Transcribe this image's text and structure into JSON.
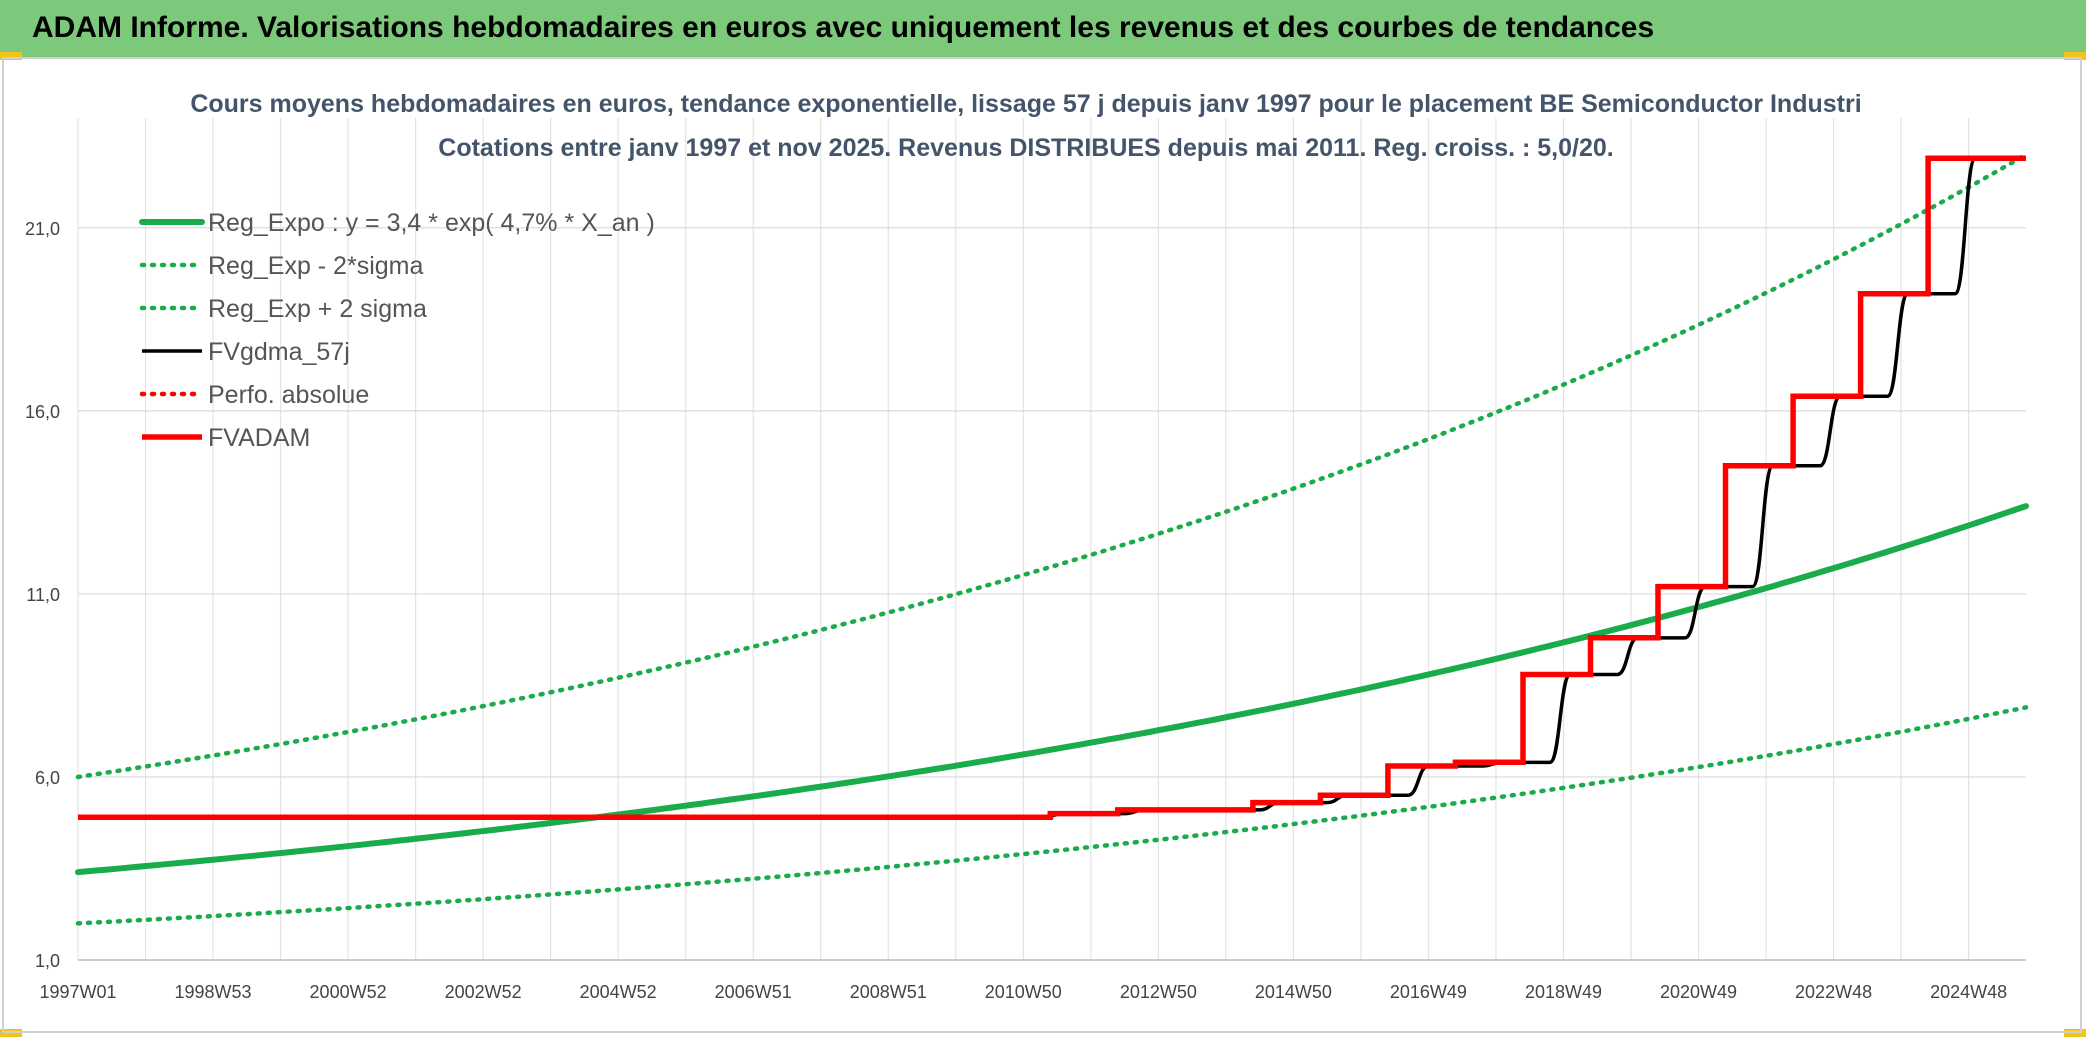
{
  "banner": {
    "title": "ADAM Informe. Valorisations hebdomadaires en euros avec uniquement les revenus et des courbes de tendances"
  },
  "chart_data": {
    "type": "line",
    "title": "Cours moyens hebdomadaires en euros, tendance exponentielle, lissage 57 j depuis janv 1997 pour le placement BE Semiconductor Industri",
    "subtitle": "Cotations entre janv 1997 et nov 2025. Revenus DISTRIBUES depuis mai 2011. Reg. croiss. : 5,0/20.",
    "xlabel": "",
    "ylabel": "",
    "x_tick_labels": [
      "1997W01",
      "1998W53",
      "2000W52",
      "2002W52",
      "2004W52",
      "2006W51",
      "2008W51",
      "2010W50",
      "2012W50",
      "2014W50",
      "2016W49",
      "2018W49",
      "2020W49",
      "2022W48",
      "2024W48"
    ],
    "x_tick_years": [
      1997,
      1999,
      2001,
      2003,
      2005,
      2007,
      2009,
      2011,
      2013,
      2015,
      2017,
      2019,
      2021,
      2023,
      2025
    ],
    "xlim": [
      1997,
      2025.85
    ],
    "y_tick_labels": [
      "1,0",
      "6,0",
      "11,0",
      "16,0",
      "21,0"
    ],
    "y_ticks": [
      1,
      6,
      11,
      16,
      21
    ],
    "ylim": [
      1,
      24
    ],
    "grid": true,
    "legend_position": "top-left",
    "series": [
      {
        "name": "Reg_Expo : y = 3,4 * exp( 4,7% *  X_an )",
        "color": "#1aab4a",
        "style": "solid",
        "x": [
          1997,
          2000,
          2003,
          2006,
          2009,
          2012,
          2015,
          2018,
          2021,
          2024,
          2025.85
        ],
        "y": [
          3.4,
          3.92,
          4.52,
          5.22,
          6.02,
          6.94,
          8.01,
          9.24,
          10.66,
          12.29,
          13.4
        ]
      },
      {
        "name": "Reg_Exp - 2*sigma",
        "color": "#1aab4a",
        "style": "dotted",
        "x": [
          1997,
          2000,
          2003,
          2006,
          2009,
          2012,
          2015,
          2018,
          2021,
          2024,
          2025.85
        ],
        "y": [
          2.0,
          2.31,
          2.66,
          3.07,
          3.54,
          4.08,
          4.71,
          5.43,
          6.27,
          7.23,
          7.9
        ]
      },
      {
        "name": "Reg_Exp + 2 sigma",
        "color": "#1aab4a",
        "style": "dotted",
        "x": [
          1997,
          2000,
          2003,
          2006,
          2009,
          2012,
          2015,
          2018,
          2021,
          2024,
          2025.85
        ],
        "y": [
          6.0,
          6.92,
          7.98,
          9.21,
          10.62,
          12.25,
          14.13,
          16.3,
          18.81,
          21.7,
          23.0
        ]
      },
      {
        "name": "FVgdma_57j",
        "color": "#000000",
        "style": "solid",
        "x": [
          1997,
          2011.3,
          2011.6,
          2012.5,
          2012.8,
          2014.5,
          2014.8,
          2015.5,
          2015.8,
          2016.7,
          2017.0,
          2017.8,
          2018.1,
          2018.8,
          2019.1,
          2019.8,
          2020.1,
          2020.8,
          2021.1,
          2021.8,
          2022.1,
          2022.8,
          2023.1,
          2023.8,
          2024.1,
          2024.8,
          2025.1,
          2025.85
        ],
        "y": [
          4.9,
          4.9,
          5.0,
          5.0,
          5.1,
          5.1,
          5.3,
          5.3,
          5.5,
          5.5,
          6.3,
          6.3,
          6.4,
          6.4,
          8.8,
          8.8,
          9.8,
          9.8,
          11.2,
          11.2,
          14.5,
          14.5,
          16.4,
          16.4,
          19.2,
          19.2,
          22.9,
          22.9
        ]
      },
      {
        "name": "Perfo. absolue",
        "color": "#ff0000",
        "style": "dotted",
        "x": [],
        "y": []
      },
      {
        "name": "FVADAM",
        "color": "#ff0000",
        "style": "solid",
        "x": [
          1997,
          2011.4,
          2011.4,
          2012.4,
          2012.4,
          2014.4,
          2014.4,
          2015.4,
          2015.4,
          2016.4,
          2016.4,
          2017.4,
          2017.4,
          2018.4,
          2018.4,
          2019.4,
          2019.4,
          2020.4,
          2020.4,
          2021.4,
          2021.4,
          2022.4,
          2022.4,
          2023.4,
          2023.4,
          2024.4,
          2024.4,
          2025.85
        ],
        "y": [
          4.9,
          4.9,
          5.0,
          5.0,
          5.1,
          5.1,
          5.3,
          5.3,
          5.5,
          5.5,
          6.3,
          6.3,
          6.4,
          6.4,
          8.8,
          8.8,
          9.8,
          9.8,
          11.2,
          11.2,
          14.5,
          14.5,
          16.4,
          16.4,
          19.2,
          19.2,
          22.9,
          22.9
        ]
      }
    ]
  }
}
